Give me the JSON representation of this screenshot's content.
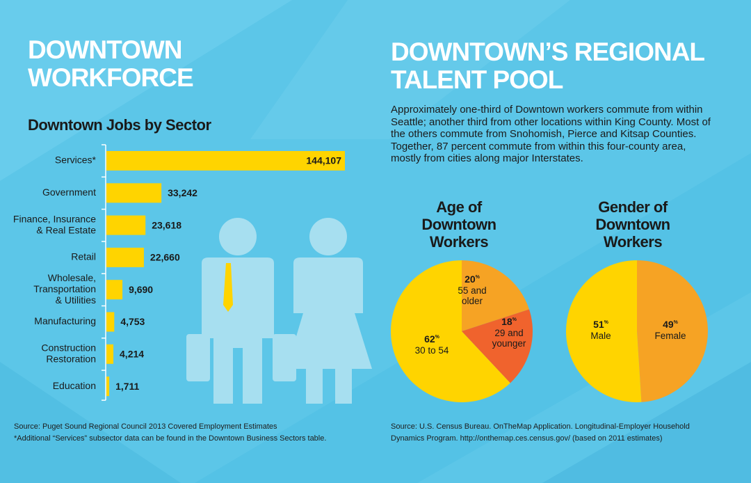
{
  "left": {
    "title_lines": [
      "DOWNTOWN",
      "WORKFORCE"
    ],
    "chart_title": "Downtown Jobs  by Sector",
    "source": "Source: Puget Sound Regional Council 2013 Covered Employment Estimates",
    "footnote": "*Additional “Services” subsector data can be found in the Downtown Business Sectors table."
  },
  "right": {
    "title_lines": [
      "DOWNTOWN’S REGIONAL",
      "TALENT POOL"
    ],
    "intro": "Approximately one-third of Downtown workers commute from within Seattle; another third from other locations within King County. Most of the others commute from Snohomish, Pierce and Kitsap Counties. Together, 87 percent commute from within this four-county area, mostly from cities along major Interstates.",
    "source": "Source: U.S. Census Bureau. OnTheMap Application. Longitudinal-Employer Household Dynamics Program. http://onthemap.ces.census.gov/ (based on 2011 estimates)"
  },
  "colors": {
    "background": "#5cc6e8",
    "bar": "#ffd400",
    "axis": "#ffffff",
    "yellow": "#ffd400",
    "orange": "#f6a324",
    "red_orange": "#f0632d",
    "figure": "#a7dff0"
  },
  "chart_data": [
    {
      "type": "bar",
      "orientation": "horizontal",
      "title": "Downtown Jobs  by Sector",
      "categories": [
        [
          "Services*"
        ],
        [
          "Government"
        ],
        [
          "Finance, Insurance",
          "& Real Estate"
        ],
        [
          "Retail"
        ],
        [
          "Wholesale,",
          "Transportation",
          "& Utilities"
        ],
        [
          "Manufacturing"
        ],
        [
          "Construction",
          "Restoration"
        ],
        [
          "Education"
        ]
      ],
      "values": [
        144107,
        33242,
        23618,
        22660,
        9690,
        4753,
        4214,
        1711
      ],
      "value_labels": [
        "144,107",
        "33,242",
        "23,618",
        "22,660",
        "9,690",
        "4,753",
        "4,214",
        "1,711"
      ],
      "xlim": [
        0,
        144107
      ],
      "grid": false
    },
    {
      "type": "pie",
      "title_lines": [
        "Age of",
        "Downtown",
        "Workers"
      ],
      "slices": [
        {
          "value": 20,
          "pct_label": "20",
          "sup": "%",
          "label_lines": [
            "55 and",
            "older"
          ],
          "color": "#f6a324"
        },
        {
          "value": 18,
          "pct_label": "18",
          "sup": "%",
          "label_lines": [
            "29 and",
            "younger"
          ],
          "color": "#f0632d"
        },
        {
          "value": 62,
          "pct_label": "62",
          "sup": "%",
          "label_lines": [
            "30  to 54"
          ],
          "color": "#ffd400"
        }
      ]
    },
    {
      "type": "pie",
      "title_lines": [
        "Gender of",
        "Downtown",
        "Workers"
      ],
      "slices": [
        {
          "value": 49,
          "pct_label": "49",
          "sup": "%",
          "label_lines": [
            "Female"
          ],
          "color": "#f6a324"
        },
        {
          "value": 51,
          "pct_label": "51",
          "sup": "%",
          "label_lines": [
            "Male"
          ],
          "color": "#ffd400"
        }
      ]
    }
  ]
}
